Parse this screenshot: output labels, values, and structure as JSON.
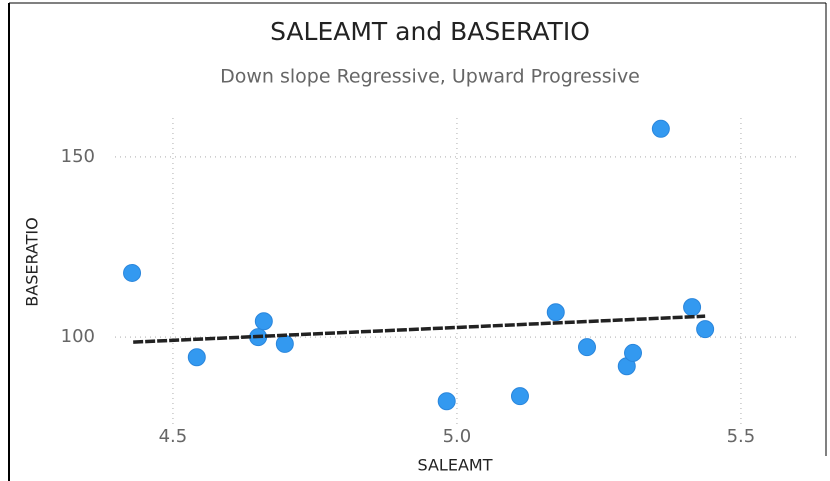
{
  "chart_data": {
    "type": "scatter",
    "title": "SALEAMT and BASERATIO",
    "subtitle": "Down slope Regressive, Upward Progressive",
    "x_label": "SALEAMT",
    "y_label": "BASERATIO",
    "color": "#3399f0",
    "series": [
      {
        "name": "BASERATIO",
        "color": "#3399f0",
        "x": [
          4.428,
          4.542,
          4.65,
          4.66,
          4.697,
          4.982,
          5.111,
          5.174,
          5.229,
          5.299,
          5.31,
          5.359,
          5.414,
          5.437
        ],
        "values": [
          117.8,
          94.4,
          100,
          104.4,
          98.1,
          82.2,
          83.6,
          106.9,
          97.2,
          91.9,
          95.6,
          157.8,
          108.3,
          102.2
        ]
      }
    ],
    "trendline": {
      "color": "#222222",
      "x": [
        4.43,
        5.437
      ],
      "values": [
        98.6,
        105.8
      ]
    },
    "xlim": [
      4.398,
      5.604
    ],
    "ylim": [
      75.6,
      160.8
    ],
    "xticks": [
      4.5,
      {
        "value": 5,
        "label": "5.0"
      },
      5.5
    ],
    "yticks": [
      100,
      150
    ],
    "grid": true
  }
}
